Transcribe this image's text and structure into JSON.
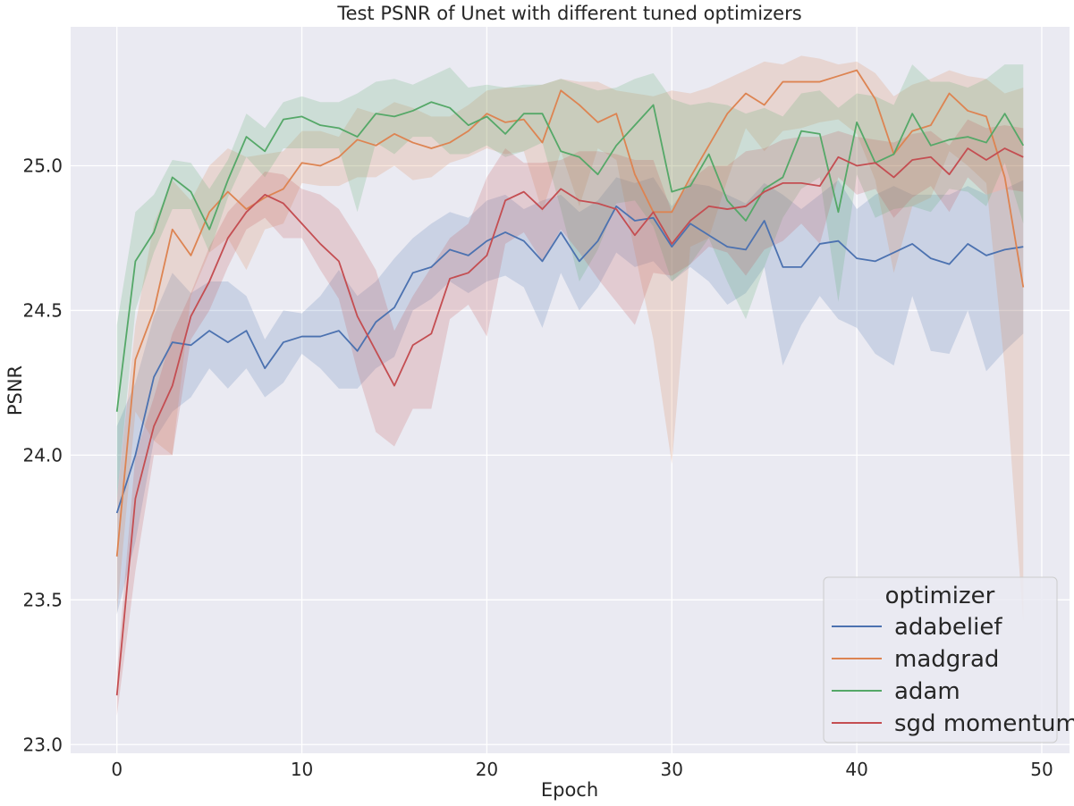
{
  "chart_data": {
    "type": "line",
    "title": "Test PSNR of Unet with different tuned optimizers",
    "xlabel": "Epoch",
    "ylabel": "PSNR",
    "xlim": [
      -2.5,
      51.5
    ],
    "ylim": [
      22.97,
      25.48
    ],
    "xticks": [
      0,
      10,
      20,
      30,
      40,
      50
    ],
    "yticks": [
      23.0,
      23.5,
      24.0,
      24.5,
      25.0
    ],
    "ytick_labels": [
      "23.0",
      "23.5",
      "24.0",
      "24.5",
      "25.0"
    ],
    "grid": true,
    "legend": {
      "title": "optimizer",
      "position": "bottom-right"
    },
    "x": [
      0,
      1,
      2,
      3,
      4,
      5,
      6,
      7,
      8,
      9,
      10,
      11,
      12,
      13,
      14,
      15,
      16,
      17,
      18,
      19,
      20,
      21,
      22,
      23,
      24,
      25,
      26,
      27,
      28,
      29,
      30,
      31,
      32,
      33,
      34,
      35,
      36,
      37,
      38,
      39,
      40,
      41,
      42,
      43,
      44,
      45,
      46,
      47,
      48,
      49
    ],
    "series": [
      {
        "name": "adabelief",
        "color": "#4c72b0",
        "values": [
          23.8,
          24.0,
          24.27,
          24.39,
          24.38,
          24.43,
          24.39,
          24.43,
          24.3,
          24.39,
          24.41,
          24.41,
          24.43,
          24.36,
          24.46,
          24.51,
          24.63,
          24.65,
          24.71,
          24.69,
          24.74,
          24.77,
          24.74,
          24.67,
          24.77,
          24.67,
          24.74,
          24.86,
          24.81,
          24.82,
          24.72,
          24.8,
          24.76,
          24.72,
          24.71,
          24.81,
          24.65,
          24.65,
          24.73,
          24.74,
          24.68,
          24.67,
          24.7,
          24.73,
          24.68,
          24.66,
          24.73,
          24.69,
          24.71,
          24.72
        ],
        "lower": [
          23.45,
          23.7,
          24.05,
          24.15,
          24.2,
          24.3,
          24.23,
          24.3,
          24.2,
          24.25,
          24.35,
          24.3,
          24.23,
          24.23,
          24.3,
          24.34,
          24.5,
          24.54,
          24.6,
          24.56,
          24.6,
          24.62,
          24.58,
          24.44,
          24.63,
          24.5,
          24.58,
          24.7,
          24.65,
          24.67,
          24.6,
          24.65,
          24.6,
          24.52,
          24.56,
          24.65,
          24.31,
          24.45,
          24.55,
          24.47,
          24.44,
          24.35,
          24.31,
          24.55,
          24.36,
          24.35,
          24.5,
          24.29,
          24.36,
          24.42
        ],
        "upper": [
          24.1,
          24.25,
          24.48,
          24.63,
          24.56,
          24.6,
          24.6,
          24.55,
          24.4,
          24.5,
          24.49,
          24.55,
          24.64,
          24.55,
          24.6,
          24.68,
          24.75,
          24.8,
          24.84,
          24.82,
          24.88,
          24.9,
          24.85,
          24.88,
          24.9,
          24.84,
          24.88,
          24.96,
          24.94,
          24.96,
          24.86,
          24.94,
          24.93,
          24.9,
          24.87,
          24.94,
          24.9,
          24.85,
          24.9,
          24.95,
          24.85,
          24.9,
          24.93,
          24.9,
          24.9,
          24.9,
          24.93,
          24.9,
          24.92,
          24.95
        ]
      },
      {
        "name": "madgrad",
        "color": "#dd8452",
        "values": [
          23.65,
          24.33,
          24.5,
          24.78,
          24.69,
          24.84,
          24.91,
          24.85,
          24.89,
          24.92,
          25.01,
          25.0,
          25.03,
          25.09,
          25.07,
          25.11,
          25.08,
          25.06,
          25.08,
          25.12,
          25.18,
          25.15,
          25.16,
          25.08,
          25.26,
          25.21,
          25.15,
          25.18,
          24.97,
          24.84,
          24.84,
          24.96,
          25.07,
          25.18,
          25.25,
          25.21,
          25.29,
          25.29,
          25.29,
          25.31,
          25.33,
          25.23,
          25.04,
          25.12,
          25.14,
          25.25,
          25.19,
          25.17,
          24.96,
          24.58
        ],
        "lower": [
          23.45,
          24.15,
          24.05,
          24.0,
          24.55,
          24.7,
          24.75,
          24.64,
          24.78,
          24.8,
          24.94,
          24.93,
          24.93,
          24.96,
          24.96,
          25.0,
          24.95,
          24.96,
          25.01,
          25.03,
          25.06,
          25.04,
          25.05,
          24.84,
          25.05,
          24.86,
          25.06,
          25.02,
          24.7,
          24.4,
          23.97,
          24.72,
          24.75,
          24.95,
          25.13,
          25.05,
          25.12,
          25.13,
          25.15,
          25.16,
          25.11,
          24.95,
          24.63,
          24.86,
          24.89,
          25.05,
          25.0,
          24.94,
          24.3,
          23.42
        ],
        "upper": [
          23.85,
          24.45,
          24.8,
          24.95,
          24.88,
          25.0,
          25.06,
          25.03,
          25.04,
          25.05,
          25.12,
          25.12,
          25.1,
          25.2,
          25.18,
          25.22,
          25.2,
          25.17,
          25.17,
          25.21,
          25.26,
          25.27,
          25.27,
          25.28,
          25.3,
          25.29,
          25.29,
          25.26,
          25.25,
          25.24,
          25.26,
          25.25,
          25.27,
          25.3,
          25.33,
          25.36,
          25.35,
          25.38,
          25.37,
          25.35,
          25.36,
          25.32,
          25.24,
          25.28,
          25.3,
          25.33,
          25.31,
          25.3,
          25.25,
          25.27
        ]
      },
      {
        "name": "adam",
        "color": "#55a868",
        "values": [
          24.15,
          24.67,
          24.77,
          24.96,
          24.91,
          24.78,
          24.95,
          25.1,
          25.05,
          25.16,
          25.17,
          25.14,
          25.13,
          25.1,
          25.18,
          25.17,
          25.19,
          25.22,
          25.2,
          25.14,
          25.17,
          25.11,
          25.18,
          25.18,
          25.05,
          25.03,
          24.97,
          25.07,
          25.14,
          25.21,
          24.91,
          24.93,
          25.04,
          24.88,
          24.81,
          24.92,
          24.96,
          25.12,
          25.11,
          24.84,
          25.15,
          25.01,
          25.04,
          25.18,
          25.07,
          25.09,
          25.1,
          25.08,
          25.18,
          25.07
        ],
        "lower": [
          23.85,
          24.5,
          24.7,
          24.85,
          24.85,
          24.7,
          24.89,
          25.03,
          24.96,
          25.06,
          25.06,
          25.06,
          25.06,
          24.84,
          25.08,
          25.04,
          25.1,
          25.1,
          25.04,
          25.04,
          25.07,
          25.03,
          25.05,
          25.08,
          24.85,
          24.6,
          24.71,
          24.87,
          24.88,
          24.79,
          24.6,
          24.66,
          24.75,
          24.6,
          24.47,
          24.65,
          24.82,
          24.92,
          24.96,
          24.53,
          24.97,
          24.82,
          24.85,
          24.86,
          24.84,
          24.92,
          24.91,
          24.86,
          25.01,
          24.8
        ],
        "upper": [
          24.45,
          24.84,
          24.9,
          25.02,
          25.01,
          24.92,
          25.02,
          25.18,
          25.13,
          25.22,
          25.24,
          25.22,
          25.22,
          25.25,
          25.29,
          25.3,
          25.28,
          25.31,
          25.34,
          25.27,
          25.28,
          25.27,
          25.28,
          25.28,
          25.3,
          25.28,
          25.26,
          25.27,
          25.3,
          25.32,
          25.23,
          25.21,
          25.22,
          25.21,
          25.18,
          25.2,
          25.17,
          25.25,
          25.26,
          25.2,
          25.25,
          25.24,
          25.21,
          25.35,
          25.29,
          25.29,
          25.27,
          25.3,
          25.35,
          25.35
        ]
      },
      {
        "name": "sgd momentum",
        "color": "#c44e52",
        "values": [
          23.17,
          23.85,
          24.1,
          24.24,
          24.48,
          24.6,
          24.75,
          24.84,
          24.9,
          24.87,
          24.8,
          24.73,
          24.67,
          24.48,
          24.36,
          24.24,
          24.38,
          24.42,
          24.61,
          24.63,
          24.69,
          24.88,
          24.91,
          24.85,
          24.92,
          24.88,
          24.87,
          24.85,
          24.76,
          24.84,
          24.73,
          24.81,
          24.86,
          24.85,
          24.86,
          24.91,
          24.94,
          24.94,
          24.93,
          25.03,
          25.0,
          25.01,
          24.96,
          25.02,
          25.03,
          24.97,
          25.06,
          25.02,
          25.06,
          25.03
        ],
        "lower": [
          23.1,
          23.6,
          24.0,
          24.0,
          24.4,
          24.5,
          24.65,
          24.78,
          24.82,
          24.75,
          24.75,
          24.64,
          24.54,
          24.29,
          24.08,
          24.03,
          24.16,
          24.16,
          24.47,
          24.52,
          24.41,
          24.73,
          24.77,
          24.67,
          24.78,
          24.7,
          24.61,
          24.53,
          24.45,
          24.63,
          24.62,
          24.66,
          24.72,
          24.7,
          24.62,
          24.71,
          24.74,
          24.8,
          24.73,
          24.96,
          24.9,
          24.92,
          24.82,
          24.89,
          24.93,
          24.84,
          24.96,
          24.9,
          24.92,
          24.91
        ],
        "upper": [
          23.25,
          24.0,
          24.2,
          24.42,
          24.56,
          24.72,
          24.84,
          24.91,
          24.98,
          24.97,
          24.92,
          24.9,
          24.85,
          24.75,
          24.64,
          24.43,
          24.55,
          24.65,
          24.75,
          24.8,
          24.96,
          25.06,
          25.01,
          25.01,
          25.02,
          25.05,
          25.05,
          25.04,
          25.02,
          25.02,
          24.84,
          24.95,
          25.0,
          25.0,
          25.05,
          25.06,
          25.09,
          25.1,
          25.1,
          25.12,
          25.1,
          25.09,
          25.08,
          25.11,
          25.12,
          25.07,
          25.16,
          25.13,
          25.14,
          25.13
        ]
      }
    ]
  }
}
